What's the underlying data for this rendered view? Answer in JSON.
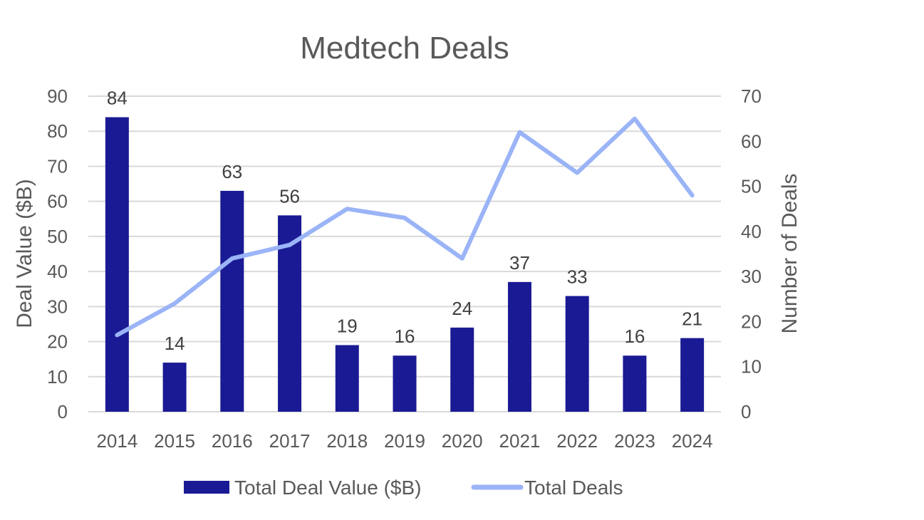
{
  "chart_data": {
    "type": "bar",
    "title": "Medtech Deals",
    "categories": [
      "2014",
      "2015",
      "2016",
      "2017",
      "2018",
      "2019",
      "2020",
      "2021",
      "2022",
      "2023",
      "2024"
    ],
    "series": [
      {
        "name": "Total Deal Value ($B)",
        "type": "bar",
        "axis": "left",
        "color": "#1a1a94",
        "values": [
          84,
          14,
          63,
          56,
          19,
          16,
          24,
          37,
          33,
          16,
          21
        ],
        "data_labels": [
          "84",
          "14",
          "63",
          "56",
          "19",
          "16",
          "24",
          "37",
          "33",
          "16",
          "21"
        ]
      },
      {
        "name": "Total Deals",
        "type": "line",
        "axis": "right",
        "color": "#9bb4f7",
        "values": [
          17,
          24,
          34,
          37,
          45,
          43,
          34,
          62,
          53,
          65,
          48
        ]
      }
    ],
    "ylabel": "Deal Value ($B)",
    "y2label": "Number of Deals",
    "xlabel": "",
    "ylim": [
      0,
      90
    ],
    "y2lim": [
      0,
      70
    ],
    "yticks": [
      "0",
      "10",
      "20",
      "30",
      "40",
      "50",
      "60",
      "70",
      "80",
      "90"
    ],
    "y2ticks": [
      "0",
      "10",
      "20",
      "30",
      "40",
      "50",
      "60",
      "70"
    ],
    "grid": true,
    "legend": "bottom"
  }
}
